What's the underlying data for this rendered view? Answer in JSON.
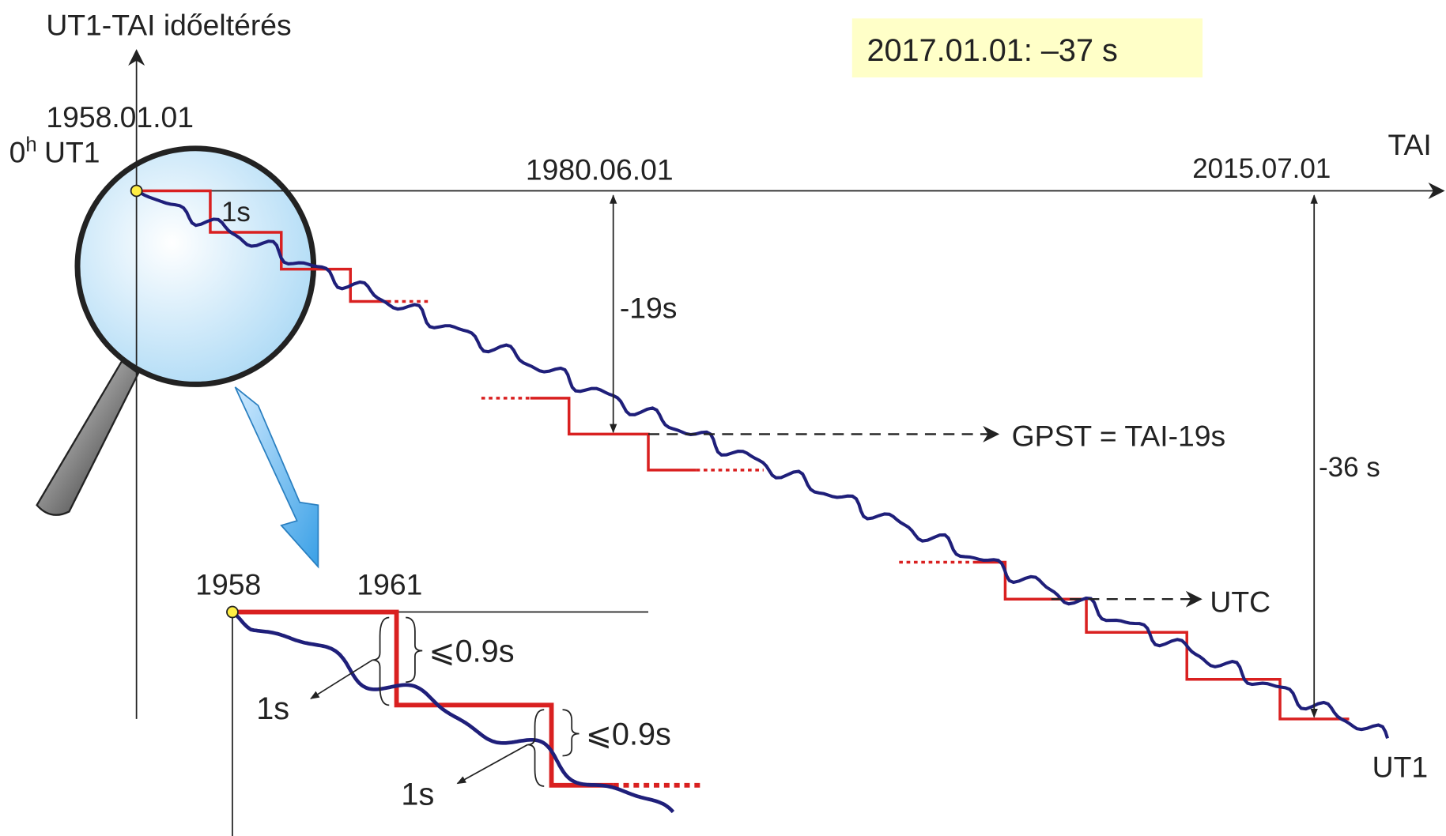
{
  "axis_label": "UT1-TAI  időeltérés",
  "note": "2017.01.01: –37 s",
  "origin": {
    "date": "1958.01.01",
    "hour": "0",
    "hour_sup": "h",
    "scale": "UT1"
  },
  "x_axis_label": "TAI",
  "dates": [
    "1980.06.01",
    "2015.07.01"
  ],
  "step_label": "1s",
  "offsets": [
    "-19s",
    "-36 s"
  ],
  "gpst_label": "GPST = TAI-19s",
  "utc_label": "UTC",
  "ut1_label": "UT1",
  "inset": {
    "start": "1958",
    "end": "1961",
    "limits": [
      "⩽0.9s",
      "⩽0.9s"
    ],
    "steps": [
      "1s",
      "1s"
    ]
  }
}
